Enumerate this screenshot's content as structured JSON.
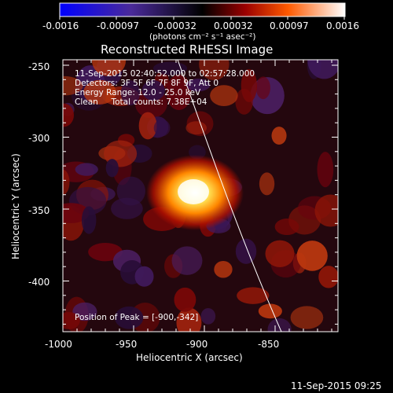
{
  "colorbar": {
    "tick_labels": [
      "-0.0016",
      "-0.00097",
      "-0.00032",
      "0.00032",
      "0.00097",
      "0.0016"
    ],
    "units": "(photons cm⁻² s⁻¹ asec⁻²)",
    "range": [
      -0.0016,
      0.0016
    ]
  },
  "plot": {
    "title": "Reconstructed RHESSI Image",
    "xlabel": "Heliocentric X (arcsec)",
    "ylabel": "Heliocentric Y (arcsec)",
    "x_ticks": [
      "-1000",
      "-950",
      "-900",
      "-850"
    ],
    "y_ticks": [
      "-250",
      "-300",
      "-350",
      "-400"
    ],
    "xlim": [
      -1000,
      -810
    ],
    "ylim": [
      -435,
      -245
    ],
    "annotations": {
      "time": "11-Sep-2015 02:40:52.000 to 02:57:28.000",
      "detectors": "Detectors: 3F 5F 6F 7F 8F 9F, Att 0",
      "energy": "Energy Range: 12.0 - 25.0 keV",
      "method": "Clean     Total counts: 7.38E+04",
      "peak": "Position of Peak = [-900,-342]"
    },
    "peak": {
      "x": -900,
      "y": -342
    }
  },
  "footer": {
    "timestamp": "11-Sep-2015 09:25"
  }
}
